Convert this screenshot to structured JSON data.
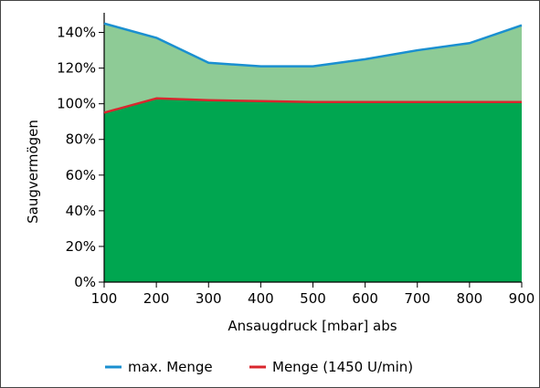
{
  "chart_data": {
    "type": "area",
    "xlabel": "Ansaugdruck [mbar] abs",
    "ylabel": "Saugvermögen",
    "xlim": [
      100,
      900
    ],
    "ylim": [
      0,
      150
    ],
    "x_ticks": [
      "100",
      "200",
      "300",
      "400",
      "500",
      "600",
      "700",
      "800",
      "900"
    ],
    "y_ticks": [
      "0%",
      "20%",
      "40%",
      "60%",
      "80%",
      "100%",
      "120%",
      "140%"
    ],
    "grid": false,
    "legend_position": "bottom",
    "series": [
      {
        "name": "max. Menge",
        "color": "#1a8fd0",
        "fill": "#8ecb96",
        "x": [
          100,
          200,
          300,
          400,
          500,
          600,
          700,
          800,
          900
        ],
        "y": [
          145,
          137,
          123,
          121,
          121,
          125,
          130,
          134,
          144
        ]
      },
      {
        "name": "Menge (1450 U/min)",
        "color": "#d9262d",
        "fill": "#00a650",
        "x": [
          100,
          200,
          300,
          400,
          500,
          600,
          700,
          800,
          900
        ],
        "y": [
          95,
          103,
          102,
          101.5,
          101,
          101,
          101,
          101,
          101
        ]
      }
    ]
  }
}
